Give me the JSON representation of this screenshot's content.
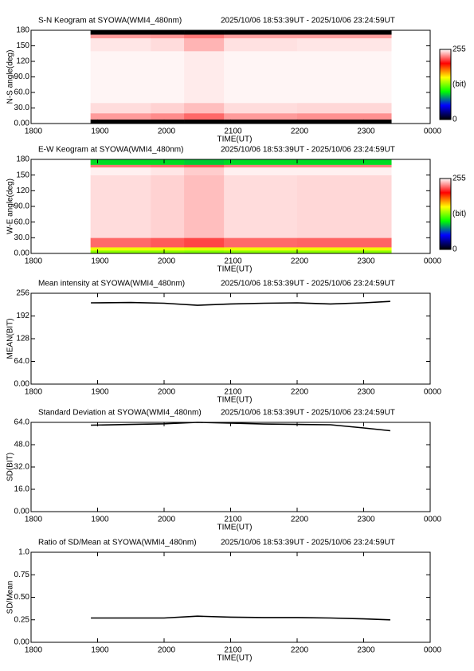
{
  "chart_data": [
    {
      "type": "heatmap",
      "title": "S-N Keogram at SYOWA(WMI4_480nm)",
      "subtitle": "2025/10/06 18:53:39UT - 2025/10/06 23:24:59UT",
      "xlabel": "TIME(UT)",
      "ylabel": "N-S angle(deg)",
      "xlim": [
        18,
        24
      ],
      "xticks": [
        {
          "value": 18,
          "label": "1800"
        },
        {
          "value": 19,
          "label": "1900"
        },
        {
          "value": 20,
          "label": "2000"
        },
        {
          "value": 21,
          "label": "2100"
        },
        {
          "value": 22,
          "label": "2200"
        },
        {
          "value": 23,
          "label": "2300"
        },
        {
          "value": 24,
          "label": "0000"
        }
      ],
      "ylim": [
        0,
        180
      ],
      "yticks": [
        {
          "value": 0,
          "label": "0.00"
        },
        {
          "value": 30,
          "label": "30.0"
        },
        {
          "value": 60,
          "label": "60.0"
        },
        {
          "value": 90,
          "label": "90.0"
        },
        120,
        150,
        180
      ],
      "x_edges": [
        18.894,
        19.8,
        20.3,
        20.9,
        22.0,
        23.416
      ],
      "y_edges": [
        0,
        8,
        20,
        40,
        140,
        165,
        172,
        180
      ],
      "z": [
        [
          0,
          0,
          0,
          0,
          0
        ],
        [
          235,
          232,
          225,
          235,
          233
        ],
        [
          248,
          246,
          242,
          248,
          247
        ],
        [
          253,
          253,
          251,
          253,
          253
        ],
        [
          250,
          248,
          240,
          249,
          250
        ],
        [
          235,
          234,
          228,
          236,
          236
        ],
        [
          0,
          0,
          0,
          0,
          0
        ]
      ],
      "clim": [
        0,
        255
      ],
      "colors": [
        "#000000",
        "#0000ff",
        "#00ff00",
        "#ffff00",
        "#ff0000",
        "#ffffff"
      ],
      "colorbar": {
        "ticks": [
          0,
          255
        ],
        "label": "(bit)"
      }
    },
    {
      "type": "heatmap",
      "title": "E-W Keogram at SYOWA(WMI4_480nm)",
      "subtitle": "2025/10/06 18:53:39UT - 2025/10/06 23:24:59UT",
      "xlabel": "TIME(UT)",
      "ylabel": "W-E angle(deg)",
      "xlim": [
        18,
        24
      ],
      "xticks": [
        {
          "value": 18,
          "label": "1800"
        },
        {
          "value": 19,
          "label": "1900"
        },
        {
          "value": 20,
          "label": "2000"
        },
        {
          "value": 21,
          "label": "2100"
        },
        {
          "value": 22,
          "label": "2200"
        },
        {
          "value": 23,
          "label": "2300"
        },
        {
          "value": 24,
          "label": "0000"
        }
      ],
      "ylim": [
        0,
        180
      ],
      "yticks": [
        {
          "value": 0,
          "label": "0.00"
        },
        {
          "value": 30,
          "label": "30.0"
        },
        {
          "value": 60,
          "label": "60.0"
        },
        {
          "value": 90,
          "label": "90.0"
        },
        120,
        150,
        180
      ],
      "x_edges": [
        18.894,
        19.8,
        20.3,
        20.9,
        22.0,
        23.416
      ],
      "y_edges": [
        0,
        6,
        12,
        30,
        150,
        165,
        170,
        180
      ],
      "z": [
        [
          130,
          130,
          128,
          130,
          130
        ],
        [
          150,
          150,
          148,
          150,
          150
        ],
        [
          225,
          222,
          218,
          225,
          224
        ],
        [
          248,
          246,
          242,
          248,
          247
        ],
        [
          252,
          250,
          245,
          252,
          252
        ],
        [
          228,
          226,
          222,
          230,
          230
        ],
        [
          95,
          95,
          92,
          95,
          95
        ]
      ],
      "clim": [
        0,
        255
      ],
      "colors": [
        "#000000",
        "#0000ff",
        "#00ff00",
        "#ffff00",
        "#ff0000",
        "#ffffff"
      ],
      "colorbar": {
        "ticks": [
          0,
          255
        ],
        "label": "(bit)"
      }
    },
    {
      "type": "line",
      "title": "Mean intensity at SYOWA(WMI4_480nm)",
      "subtitle": "2025/10/06 18:53:39UT - 2025/10/06 23:24:59UT",
      "xlabel": "TIME(UT)",
      "ylabel": "MEAN(BIT)",
      "xlim": [
        18,
        24
      ],
      "xticks": [
        {
          "value": 18,
          "label": "1800"
        },
        {
          "value": 19,
          "label": "1900"
        },
        {
          "value": 20,
          "label": "2000"
        },
        {
          "value": 21,
          "label": "2100"
        },
        {
          "value": 22,
          "label": "2200"
        },
        {
          "value": 23,
          "label": "2300"
        },
        {
          "value": 24,
          "label": "0000"
        }
      ],
      "ylim": [
        0,
        256
      ],
      "yticks": [
        {
          "value": 0,
          "label": "0.00"
        },
        {
          "value": 64,
          "label": "64.0"
        },
        128,
        192,
        256
      ],
      "x": [
        18.9,
        19.5,
        20.0,
        20.5,
        21.0,
        21.5,
        22.0,
        22.5,
        23.0,
        23.4
      ],
      "values": [
        229,
        230,
        228,
        222,
        226,
        228,
        229,
        226,
        229,
        233
      ],
      "color": "#000000"
    },
    {
      "type": "line",
      "title": "Standard Deviation at SYOWA(WMI4_480nm)",
      "subtitle": "2025/10/06 18:53:39UT - 2025/10/06 23:24:59UT",
      "xlabel": "TIME(UT)",
      "ylabel": "SD(BIT)",
      "xlim": [
        18,
        24
      ],
      "xticks": [
        {
          "value": 18,
          "label": "1800"
        },
        {
          "value": 19,
          "label": "1900"
        },
        {
          "value": 20,
          "label": "2000"
        },
        {
          "value": 21,
          "label": "2100"
        },
        {
          "value": 22,
          "label": "2200"
        },
        {
          "value": 23,
          "label": "2300"
        },
        {
          "value": 24,
          "label": "0000"
        }
      ],
      "ylim": [
        0,
        64
      ],
      "yticks": [
        {
          "value": 0,
          "label": "0.00"
        },
        {
          "value": 16,
          "label": "16.0"
        },
        {
          "value": 32,
          "label": "32.0"
        },
        {
          "value": 48,
          "label": "48.0"
        },
        {
          "value": 64,
          "label": "64.0"
        }
      ],
      "x": [
        18.9,
        19.5,
        20.0,
        20.5,
        21.0,
        21.5,
        22.0,
        22.5,
        23.0,
        23.4
      ],
      "values": [
        62,
        62.5,
        63,
        64,
        63.5,
        62.8,
        62.5,
        62.3,
        60,
        58
      ],
      "color": "#000000"
    },
    {
      "type": "line",
      "title": "Ratio of SD/Mean at SYOWA(WMI4_480nm)",
      "subtitle": "2025/10/06 18:53:39UT - 2025/10/06 23:24:59UT",
      "xlabel": "TIME(UT)",
      "ylabel": "SD/Mean",
      "xlim": [
        18,
        24
      ],
      "xticks": [
        {
          "value": 18,
          "label": "1800"
        },
        {
          "value": 19,
          "label": "1900"
        },
        {
          "value": 20,
          "label": "2000"
        },
        {
          "value": 21,
          "label": "2100"
        },
        {
          "value": 22,
          "label": "2200"
        },
        {
          "value": 23,
          "label": "2300"
        },
        {
          "value": 24,
          "label": "0000"
        }
      ],
      "ylim": [
        0,
        1
      ],
      "yticks": [
        {
          "value": 0,
          "label": "0.00"
        },
        0.25,
        {
          "value": 0.5,
          "label": "0.50"
        },
        0.75,
        {
          "value": 1,
          "label": "1.0"
        }
      ],
      "x": [
        18.9,
        19.5,
        20.0,
        20.5,
        21.0,
        21.5,
        22.0,
        22.5,
        23.0,
        23.4
      ],
      "values": [
        0.27,
        0.27,
        0.27,
        0.29,
        0.28,
        0.275,
        0.275,
        0.27,
        0.26,
        0.25
      ],
      "color": "#000000"
    }
  ]
}
